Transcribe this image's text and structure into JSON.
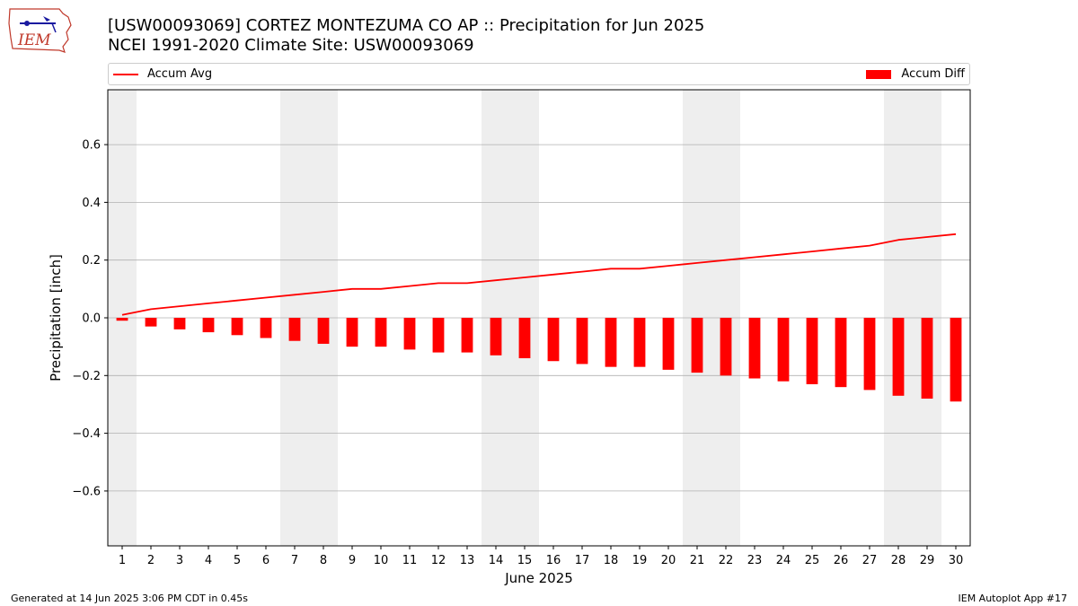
{
  "logo": {
    "text": "IEM",
    "icon": "iowa-state-outline-logo"
  },
  "header": {
    "title": "[USW00093069] CORTEZ MONTEZUMA CO AP :: Precipitation for Jun 2025",
    "subtitle": "NCEI 1991-2020 Climate Site: USW00093069"
  },
  "legend": {
    "avg_label": "Accum Avg",
    "diff_label": "Accum Diff",
    "placement": "top, outside plot"
  },
  "footer": {
    "generated": "Generated at 14 Jun 2025 3:06 PM CDT in 0.45s",
    "app": "IEM Autoplot App #17"
  },
  "colors": {
    "avg_line": "#ff0000",
    "diff_bar": "#ff0000",
    "weekend_shade": "#eeeeee",
    "grid": "#b0b0b0"
  },
  "chart_data": {
    "type": "bar",
    "xlabel": "June 2025",
    "ylabel": "Precipitation [inch]",
    "xlim": [
      0.5,
      30.5
    ],
    "ylim": [
      -0.79,
      0.79
    ],
    "yticks": [
      -0.6,
      -0.4,
      -0.2,
      0.0,
      0.2,
      0.4,
      0.6
    ],
    "ytick_labels": [
      "−0.6",
      "−0.4",
      "−0.2",
      "0.0",
      "0.2",
      "0.4",
      "0.6"
    ],
    "grid": "horizontal",
    "x": [
      1,
      2,
      3,
      4,
      5,
      6,
      7,
      8,
      9,
      10,
      11,
      12,
      13,
      14,
      15,
      16,
      17,
      18,
      19,
      20,
      21,
      22,
      23,
      24,
      25,
      26,
      27,
      28,
      29,
      30
    ],
    "categories": [
      "1",
      "2",
      "3",
      "4",
      "5",
      "6",
      "7",
      "8",
      "9",
      "10",
      "11",
      "12",
      "13",
      "14",
      "15",
      "16",
      "17",
      "18",
      "19",
      "20",
      "21",
      "22",
      "23",
      "24",
      "25",
      "26",
      "27",
      "28",
      "29",
      "30"
    ],
    "shaded_days": [
      1,
      7,
      8,
      14,
      15,
      21,
      22,
      28,
      29
    ],
    "series": [
      {
        "name": "Accum Avg",
        "type": "line",
        "values": [
          0.01,
          0.03,
          0.04,
          0.05,
          0.06,
          0.07,
          0.08,
          0.09,
          0.1,
          0.1,
          0.11,
          0.12,
          0.12,
          0.13,
          0.14,
          0.15,
          0.16,
          0.17,
          0.17,
          0.18,
          0.19,
          0.2,
          0.21,
          0.22,
          0.23,
          0.24,
          0.25,
          0.27,
          0.28,
          0.29
        ]
      },
      {
        "name": "Accum Diff",
        "type": "bar",
        "values": [
          -0.01,
          -0.03,
          -0.04,
          -0.05,
          -0.06,
          -0.07,
          -0.08,
          -0.09,
          -0.1,
          -0.1,
          -0.11,
          -0.12,
          -0.12,
          -0.13,
          -0.14,
          -0.15,
          -0.16,
          -0.17,
          -0.17,
          -0.18,
          -0.19,
          -0.2,
          -0.21,
          -0.22,
          -0.23,
          -0.24,
          -0.25,
          -0.27,
          -0.28,
          -0.29
        ]
      }
    ]
  }
}
